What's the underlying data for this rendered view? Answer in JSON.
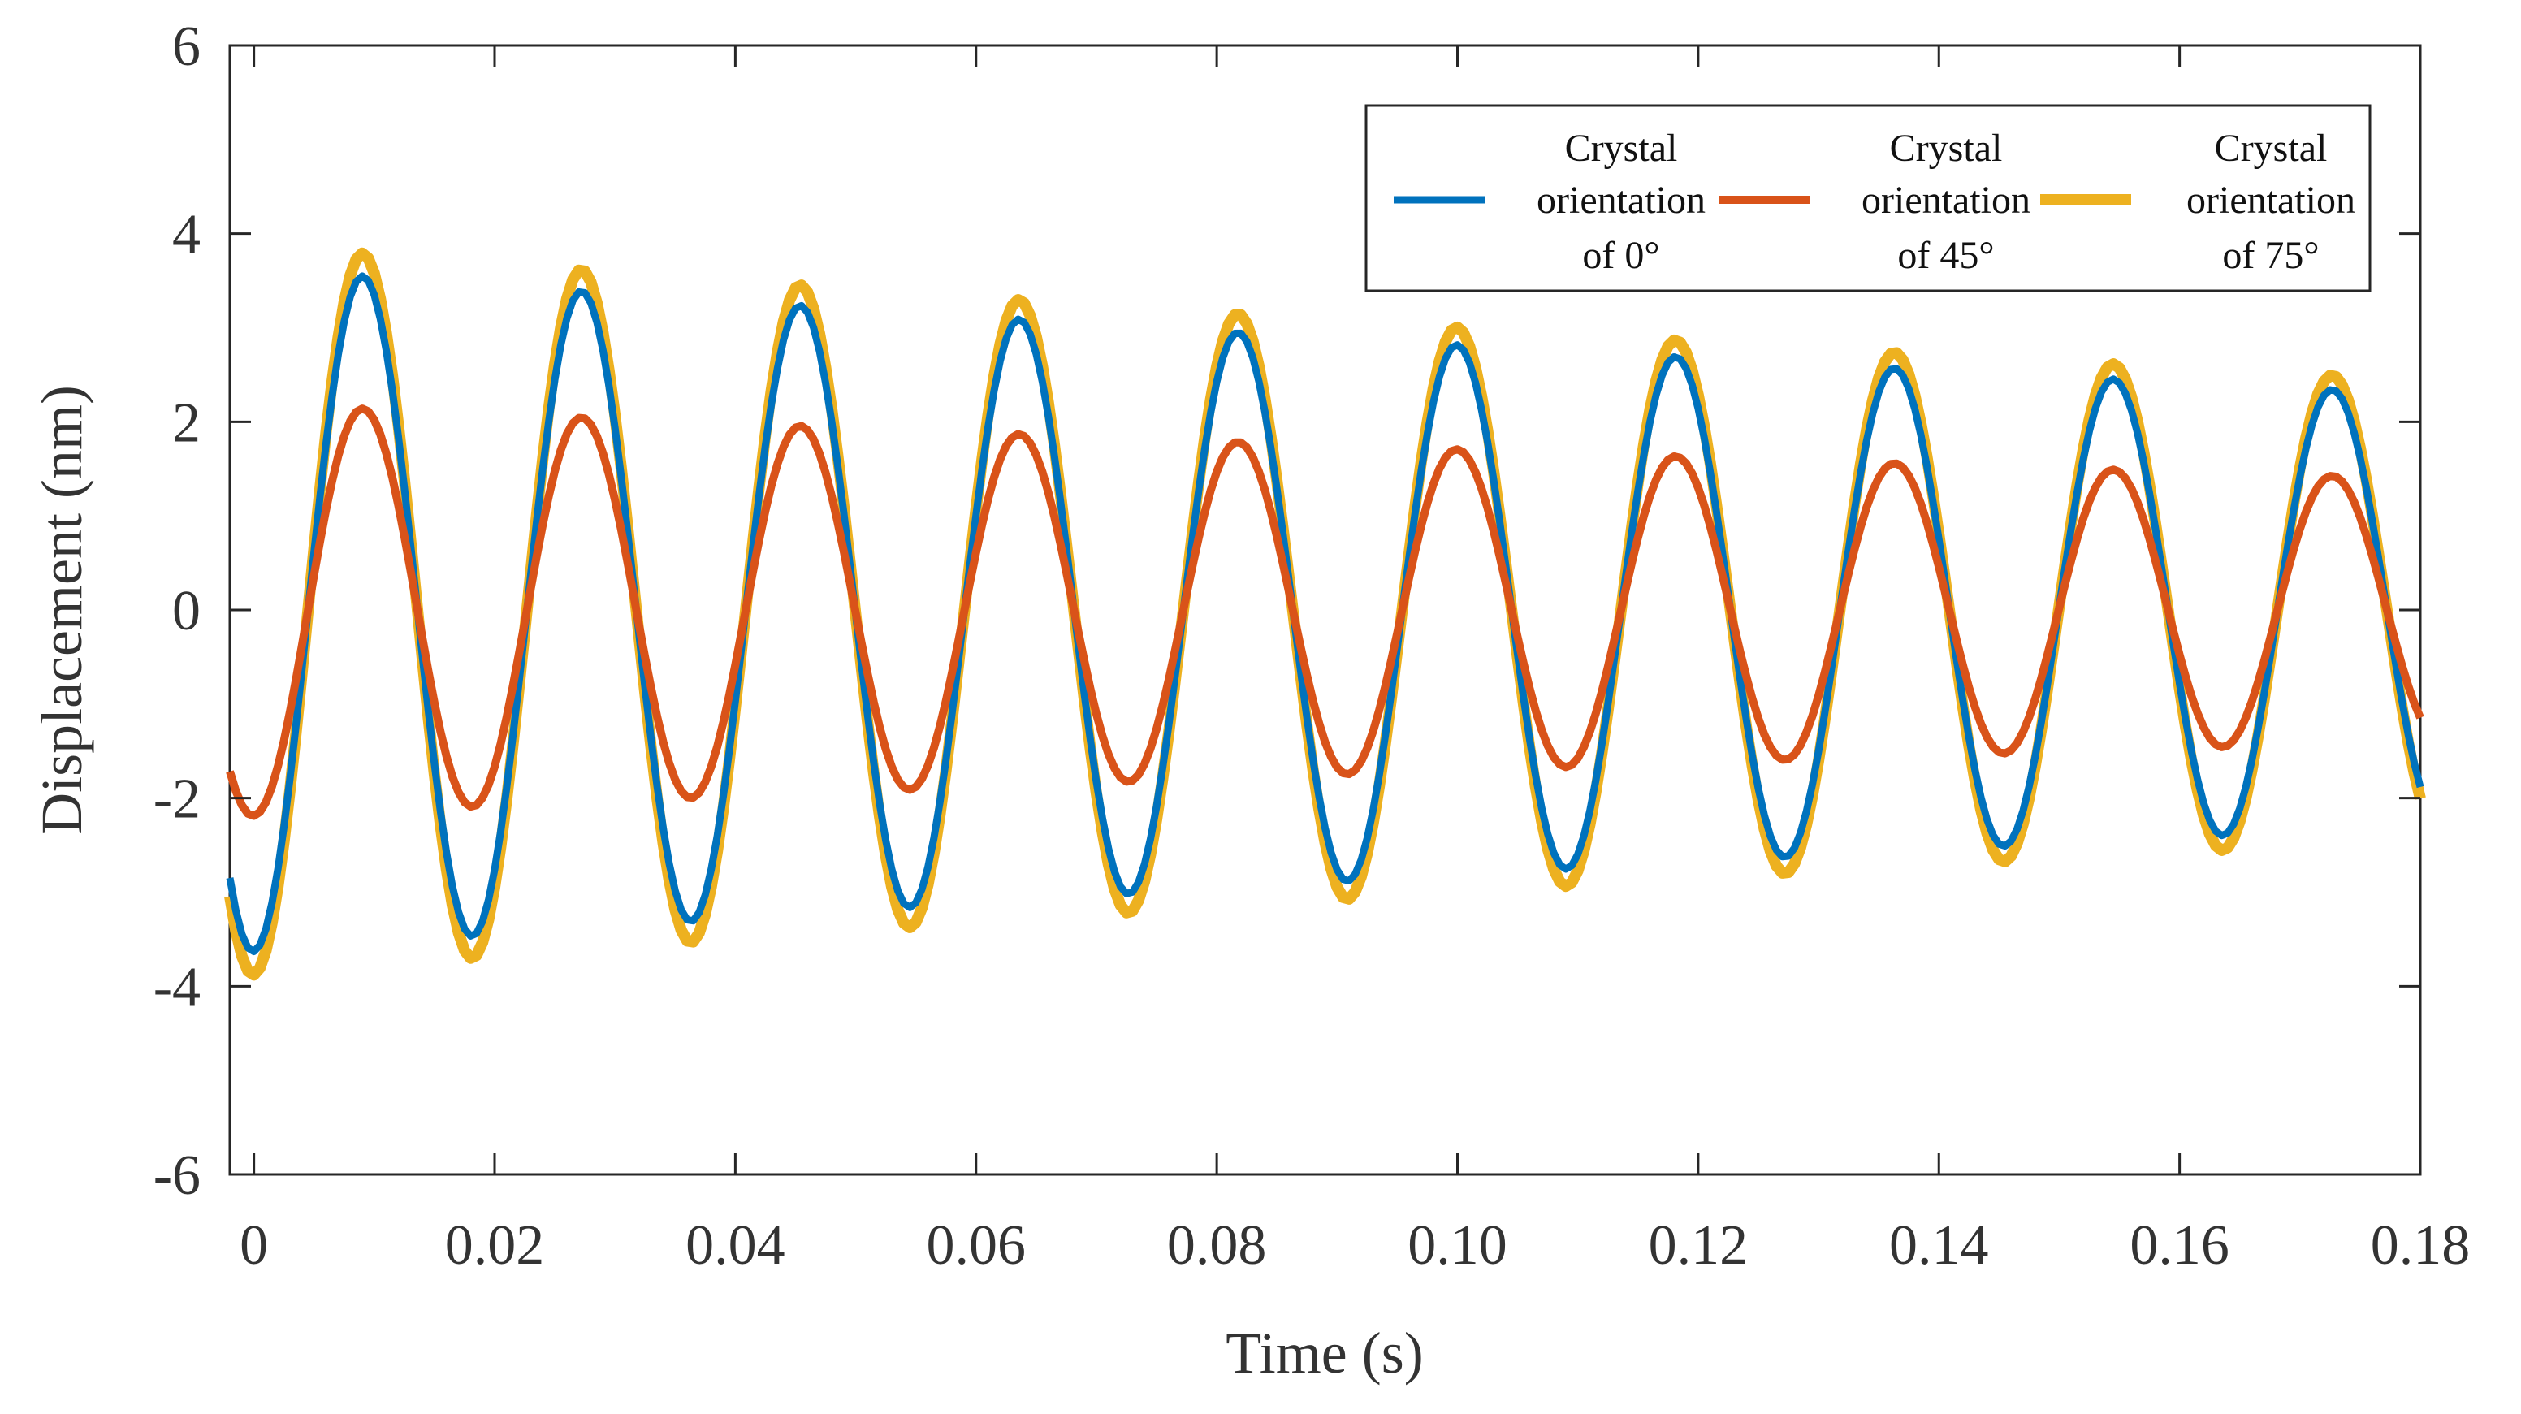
{
  "chart_data": {
    "type": "line",
    "title": "",
    "xlabel": "Time (s)",
    "ylabel": "Displacement (nm)",
    "xlim": [
      -0.002,
      0.18
    ],
    "ylim": [
      -6,
      6
    ],
    "xticks": [
      0,
      0.02,
      0.04,
      0.06,
      0.08,
      0.1,
      0.12,
      0.14,
      0.16,
      0.18
    ],
    "xtick_labels": [
      "0",
      "0.02",
      "0.04",
      "0.06",
      "0.08",
      "0.10",
      "0.12",
      "0.14",
      "0.16",
      "0.18"
    ],
    "yticks": [
      -6,
      -4,
      -2,
      0,
      2,
      4,
      6
    ],
    "ytick_labels": [
      "-6",
      "-4",
      "-2",
      "0",
      "2",
      "4",
      "6"
    ],
    "legend_position": "top-right",
    "signal": {
      "frequency_hz": 55,
      "phase_offset_s": 0.0045,
      "sample_step_s": 0.0005
    },
    "series": [
      {
        "name": "Crystal orientation of 0°",
        "label_lines": [
          "Crystal",
          "orientation",
          "of 0°"
        ],
        "color": "#0072BD",
        "amplitude_start": 3.65,
        "amplitude_end": 2.3
      },
      {
        "name": "Crystal orientation of 45°",
        "label_lines": [
          "Crystal",
          "orientation",
          "of 45°"
        ],
        "color": "#D95319",
        "amplitude_start": 2.2,
        "amplitude_end": 1.4
      },
      {
        "name": "Crystal orientation of 75°",
        "label_lines": [
          "Crystal",
          "orientation",
          "of 75°"
        ],
        "color": "#EDB120",
        "amplitude_start": 3.9,
        "amplitude_end": 2.45
      }
    ],
    "draw_order": [
      2,
      0,
      1
    ]
  }
}
